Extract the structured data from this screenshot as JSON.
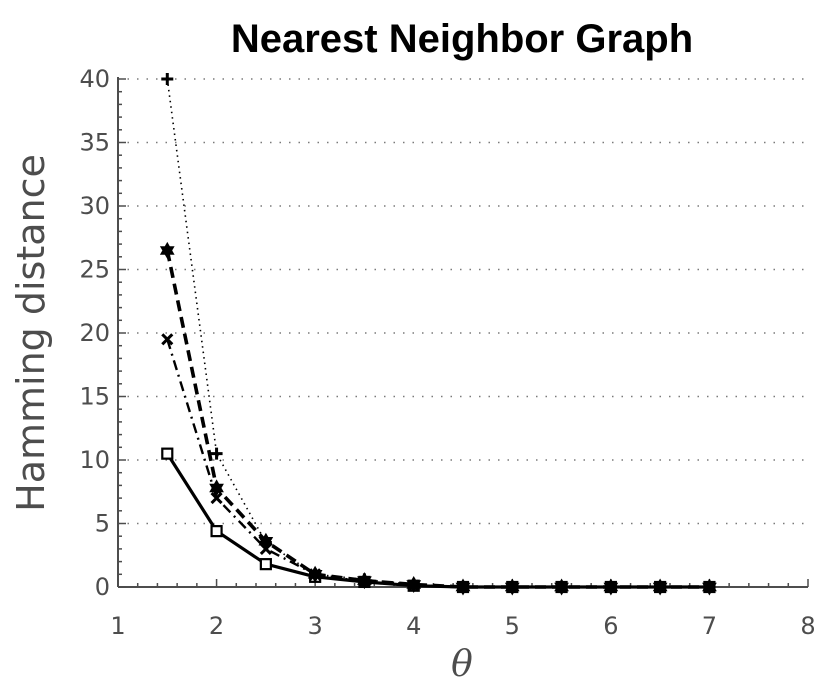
{
  "chart_data": {
    "type": "line",
    "title": "Nearest Neighbor Graph",
    "xlabel": "θ",
    "ylabel": "Hamming distance",
    "xlim": [
      1,
      8
    ],
    "ylim": [
      0,
      40
    ],
    "xticks": [
      1,
      2,
      3,
      4,
      5,
      6,
      7,
      8
    ],
    "yticks": [
      0,
      5,
      10,
      15,
      20,
      25,
      30,
      35,
      40
    ],
    "grid": "horizontal dotted",
    "legend": "none",
    "x": [
      1.5,
      2,
      2.5,
      3,
      3.5,
      4,
      4.5,
      5,
      5.5,
      6,
      6.5,
      7
    ],
    "series": [
      {
        "line_style": "solid",
        "marker": "square",
        "color": "#000000",
        "values": [
          10.5,
          4.4,
          1.8,
          0.8,
          0.4,
          0.1,
          0.0,
          0.0,
          0.0,
          0.0,
          0.0,
          0.0
        ]
      },
      {
        "line_style": "dashdot",
        "marker": "x",
        "color": "#000000",
        "values": [
          19.5,
          7.0,
          3.0,
          1.0,
          0.4,
          0.1,
          0.0,
          0.0,
          0.0,
          0.0,
          0.0,
          0.0
        ]
      },
      {
        "line_style": "dashed",
        "marker": "hexagram",
        "color": "#000000",
        "values": [
          26.5,
          7.8,
          3.6,
          1.0,
          0.5,
          0.2,
          0.0,
          0.0,
          0.0,
          0.0,
          0.0,
          0.0
        ]
      },
      {
        "line_style": "dotted",
        "marker": "plus",
        "color": "#000000",
        "values": [
          40.0,
          10.5,
          3.5,
          1.0,
          0.6,
          0.2,
          0.0,
          0.0,
          0.0,
          0.0,
          0.0,
          0.0
        ]
      }
    ]
  }
}
